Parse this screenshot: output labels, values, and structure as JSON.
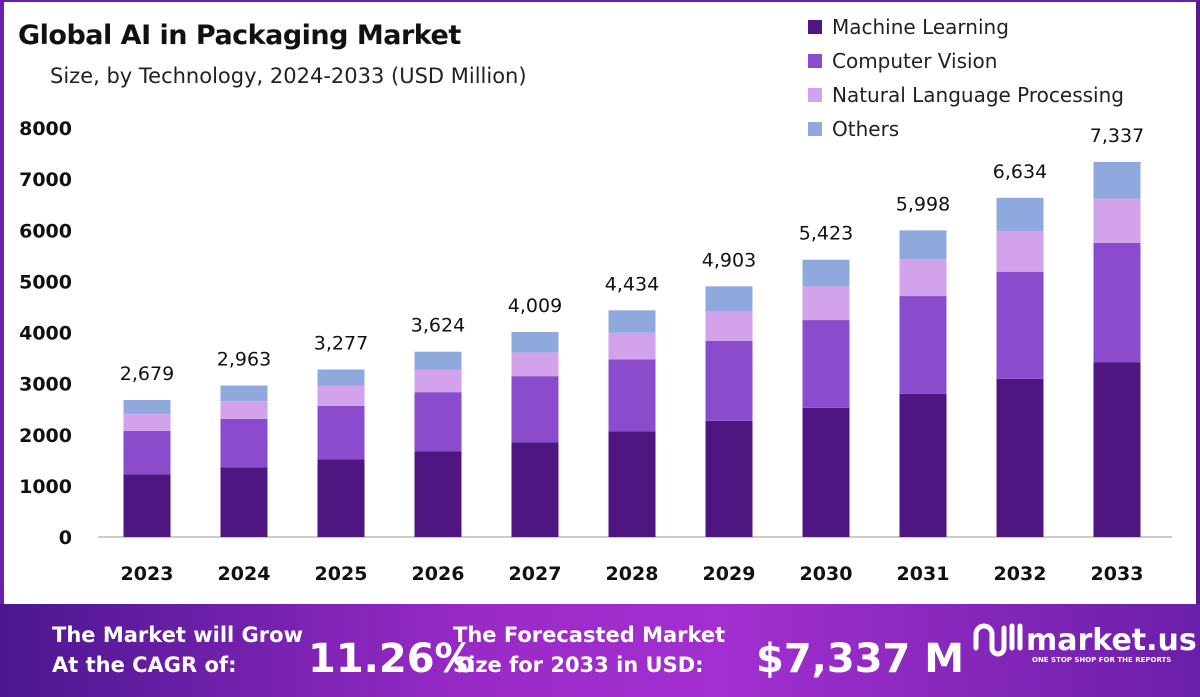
{
  "chart_data": {
    "type": "bar",
    "stacked": true,
    "title": "Global AI in Packaging Market",
    "subtitle": "Size, by Technology, 2024-2033 (USD Million)",
    "categories": [
      "2023",
      "2024",
      "2025",
      "2026",
      "2027",
      "2028",
      "2029",
      "2030",
      "2031",
      "2032",
      "2033"
    ],
    "series": [
      {
        "name": "Machine Learning",
        "color": "#4f1580",
        "values": [
          1227,
          1364,
          1521,
          1678,
          1854,
          2063,
          2272,
          2526,
          2800,
          3094,
          3420
        ]
      },
      {
        "name": "Computer Vision",
        "color": "#8a4ccd",
        "values": [
          849,
          947,
          1044,
          1155,
          1292,
          1410,
          1566,
          1717,
          1913,
          2095,
          2331
        ]
      },
      {
        "name": "Natural Language Processing",
        "color": "#d2a2ea",
        "values": [
          339,
          346,
          392,
          437,
          464,
          522,
          575,
          659,
          718,
          797,
          868
        ]
      },
      {
        "name": "Others",
        "color": "#8fa8de",
        "values": [
          264,
          306,
          320,
          354,
          399,
          439,
          490,
          521,
          567,
          648,
          718
        ]
      }
    ],
    "totals_labels": [
      "2,679",
      "2,963",
      "3,277",
      "3,624",
      "4,009",
      "4,434",
      "4,903",
      "5,423",
      "5,998",
      "6,634",
      "7,337"
    ],
    "yticks": [
      "0",
      "1000",
      "2000",
      "3000",
      "4000",
      "5000",
      "6000",
      "7000",
      "8000"
    ],
    "ylim": [
      0,
      8000
    ],
    "grid": false,
    "legend": "top-right"
  },
  "banner": {
    "cagr_text_1": "The Market will Grow",
    "cagr_text_2": "At the CAGR of:",
    "cagr_value": "11.26%",
    "forecast_text_1": "The Forecasted Market",
    "forecast_text_2": "Size for 2033 in USD:",
    "forecast_value": "$7,337 M",
    "logo_name": "market.us",
    "logo_tagline": "ONE STOP SHOP FOR THE REPORTS"
  }
}
